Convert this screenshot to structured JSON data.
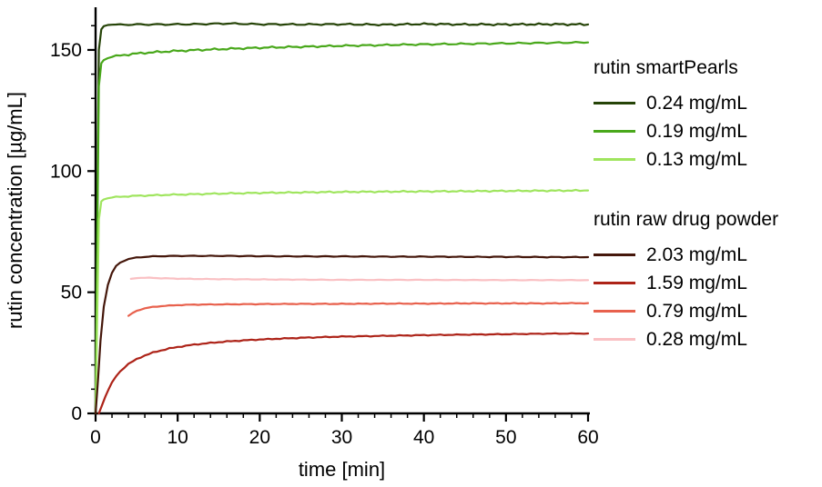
{
  "chart_data": {
    "type": "line",
    "title": "",
    "xlabel": "time [min]",
    "ylabel": "rutin concentration [µg/mL]",
    "xlim": [
      0,
      60
    ],
    "ylim": [
      0,
      167.6
    ],
    "x_major_step": 10,
    "x_minor_step": 2,
    "y_major_step": 50,
    "y_minor_step": 10,
    "x_tick_labels": [
      0,
      10,
      20,
      30,
      40,
      50,
      60
    ],
    "y_tick_labels": [
      0,
      50,
      100,
      150
    ],
    "grid": false,
    "legend_position": "right",
    "series": [
      {
        "name": "0.24 mg/mL",
        "group": "rutin smartPearls",
        "color": "#264408",
        "jitter": 0.45,
        "points": [
          [
            0,
            0
          ],
          [
            0.2,
            80
          ],
          [
            0.4,
            150
          ],
          [
            0.7,
            158.5
          ],
          [
            1,
            159.8
          ],
          [
            1.5,
            160.3
          ],
          [
            2,
            160.4
          ],
          [
            3,
            160.4
          ],
          [
            5,
            160.5
          ],
          [
            8,
            160.5
          ],
          [
            12,
            160.6
          ],
          [
            16,
            160.9
          ],
          [
            20,
            160.6
          ],
          [
            25,
            160.5
          ],
          [
            30,
            160.6
          ],
          [
            35,
            160.4
          ],
          [
            40,
            160.7
          ],
          [
            45,
            160.5
          ],
          [
            50,
            160.5
          ],
          [
            55,
            160.6
          ],
          [
            60,
            160.5
          ]
        ]
      },
      {
        "name": "0.19 mg/mL",
        "group": "rutin smartPearls",
        "color": "#49a81b",
        "jitter": 0.45,
        "points": [
          [
            0,
            0
          ],
          [
            0.2,
            70
          ],
          [
            0.4,
            135
          ],
          [
            0.7,
            144.5
          ],
          [
            1,
            145.8
          ],
          [
            1.5,
            146.6
          ],
          [
            2,
            147.1
          ],
          [
            3,
            147.7
          ],
          [
            4,
            148.1
          ],
          [
            5,
            148.5
          ],
          [
            6,
            148.8
          ],
          [
            8,
            149.2
          ],
          [
            10,
            149.6
          ],
          [
            12,
            149.9
          ],
          [
            15,
            150.3
          ],
          [
            20,
            150.9
          ],
          [
            25,
            151.3
          ],
          [
            30,
            151.7
          ],
          [
            35,
            152
          ],
          [
            40,
            152.3
          ],
          [
            45,
            152.5
          ],
          [
            50,
            152.7
          ],
          [
            55,
            152.9
          ],
          [
            60,
            153.1
          ]
        ]
      },
      {
        "name": "0.13 mg/mL",
        "group": "rutin smartPearls",
        "color": "#9fe55e",
        "jitter": 0.3,
        "points": [
          [
            0,
            0
          ],
          [
            0.2,
            40
          ],
          [
            0.4,
            80
          ],
          [
            0.7,
            87.5
          ],
          [
            1,
            88.3
          ],
          [
            1.5,
            88.8
          ],
          [
            2,
            89.1
          ],
          [
            3,
            89.4
          ],
          [
            5,
            89.8
          ],
          [
            8,
            90.1
          ],
          [
            10,
            90.3
          ],
          [
            15,
            90.7
          ],
          [
            20,
            91
          ],
          [
            25,
            91.2
          ],
          [
            30,
            91.4
          ],
          [
            35,
            91.5
          ],
          [
            40,
            91.6
          ],
          [
            45,
            91.7
          ],
          [
            50,
            91.8
          ],
          [
            55,
            91.9
          ],
          [
            60,
            92
          ]
        ]
      },
      {
        "name": "2.03 mg/mL",
        "group": "rutin raw drug powder",
        "color": "#45170b",
        "jitter": 0.22,
        "points": [
          [
            0,
            0
          ],
          [
            0.3,
            14
          ],
          [
            0.6,
            30
          ],
          [
            1,
            44
          ],
          [
            1.5,
            53
          ],
          [
            2,
            58
          ],
          [
            2.5,
            60.8
          ],
          [
            3,
            62.2
          ],
          [
            3.5,
            63.1
          ],
          [
            4,
            63.7
          ],
          [
            5,
            64.3
          ],
          [
            6,
            64.6
          ],
          [
            7,
            64.8
          ],
          [
            8,
            64.9
          ],
          [
            10,
            65
          ],
          [
            12,
            65
          ],
          [
            15,
            65
          ],
          [
            20,
            64.9
          ],
          [
            25,
            64.8
          ],
          [
            30,
            64.8
          ],
          [
            35,
            64.7
          ],
          [
            40,
            64.7
          ],
          [
            45,
            64.6
          ],
          [
            50,
            64.6
          ],
          [
            55,
            64.5
          ],
          [
            60,
            64.5
          ]
        ]
      },
      {
        "name": "1.59 mg/mL",
        "group": "rutin raw drug powder",
        "color": "#ad2318",
        "jitter": 0.2,
        "points": [
          [
            0.4,
            0
          ],
          [
            0.8,
            3.5
          ],
          [
            1.2,
            7
          ],
          [
            1.6,
            10
          ],
          [
            2,
            12.8
          ],
          [
            2.5,
            15.3
          ],
          [
            3,
            17.3
          ],
          [
            3.5,
            19
          ],
          [
            4,
            20.4
          ],
          [
            5,
            22.4
          ],
          [
            6,
            23.9
          ],
          [
            7,
            25.1
          ],
          [
            8,
            26
          ],
          [
            9,
            26.8
          ],
          [
            10,
            27.4
          ],
          [
            12,
            28.4
          ],
          [
            14,
            29.1
          ],
          [
            16,
            29.7
          ],
          [
            18,
            30.1
          ],
          [
            20,
            30.5
          ],
          [
            25,
            31.2
          ],
          [
            30,
            31.7
          ],
          [
            35,
            32
          ],
          [
            40,
            32.3
          ],
          [
            45,
            32.5
          ],
          [
            50,
            32.7
          ],
          [
            55,
            32.9
          ],
          [
            60,
            33
          ]
        ]
      },
      {
        "name": "0.79 mg/mL",
        "group": "rutin raw drug powder",
        "color": "#e8614d",
        "jitter": 0.18,
        "points": [
          [
            4,
            40.2
          ],
          [
            4.5,
            41.4
          ],
          [
            5,
            42.3
          ],
          [
            5.5,
            42.9
          ],
          [
            6,
            43.4
          ],
          [
            7,
            43.9
          ],
          [
            8,
            44.3
          ],
          [
            9,
            44.5
          ],
          [
            10,
            44.7
          ],
          [
            12,
            44.9
          ],
          [
            15,
            45
          ],
          [
            20,
            45.1
          ],
          [
            25,
            45.2
          ],
          [
            30,
            45.2
          ],
          [
            35,
            45.3
          ],
          [
            40,
            45.3
          ],
          [
            45,
            45.4
          ],
          [
            50,
            45.4
          ],
          [
            55,
            45.4
          ],
          [
            60,
            45.5
          ]
        ]
      },
      {
        "name": "0.28 mg/mL",
        "group": "rutin raw drug powder",
        "color": "#fac0c3",
        "jitter": 0.15,
        "points": [
          [
            4.3,
            55.4
          ],
          [
            5,
            55.9
          ],
          [
            6,
            56
          ],
          [
            7,
            55.9
          ],
          [
            8,
            55.8
          ],
          [
            10,
            55.6
          ],
          [
            12,
            55.5
          ],
          [
            15,
            55.4
          ],
          [
            20,
            55.3
          ],
          [
            25,
            55.2
          ],
          [
            30,
            55.1
          ],
          [
            40,
            55.1
          ],
          [
            50,
            55
          ],
          [
            60,
            55
          ]
        ]
      }
    ]
  },
  "legend": {
    "groups": [
      {
        "title": "rutin smartPearls",
        "series": [
          0,
          1,
          2
        ]
      },
      {
        "title": "rutin raw drug powder",
        "series": [
          3,
          4,
          5,
          6
        ]
      }
    ]
  },
  "colors": {
    "axis": "#000000",
    "background": "#ffffff"
  }
}
